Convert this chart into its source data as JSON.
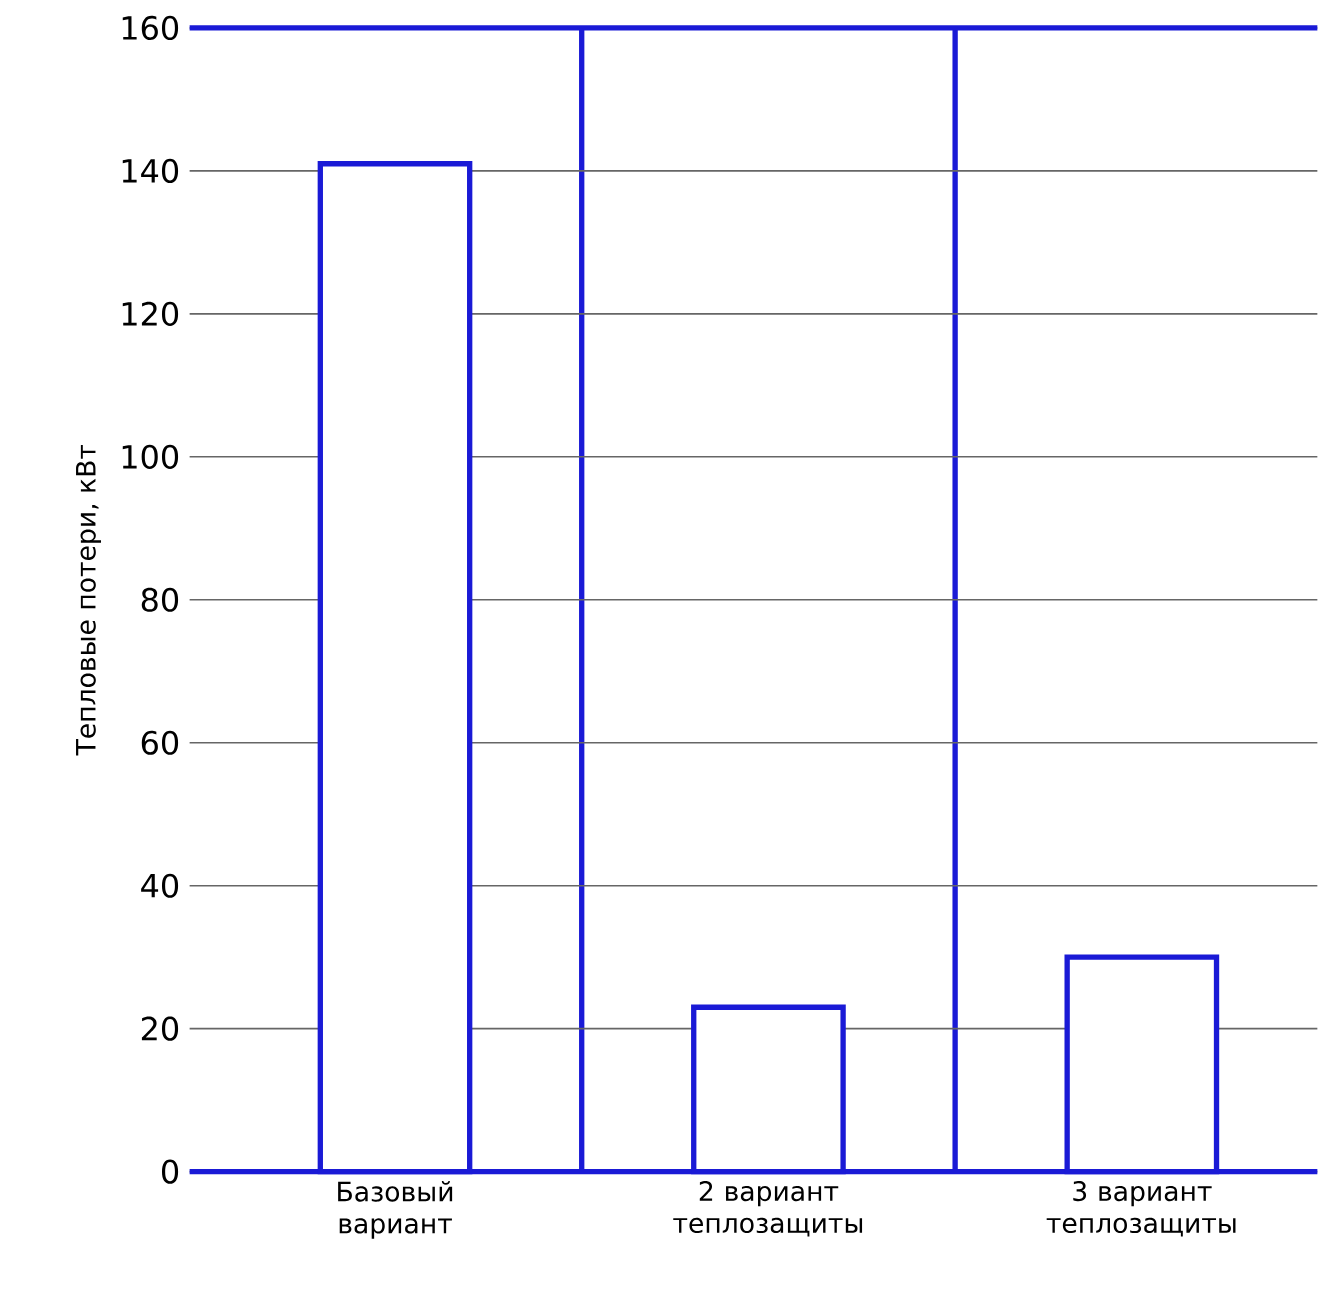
{
  "chart_data": {
    "type": "bar",
    "ylabel": "Тепловые потери, кВт",
    "categories": [
      "Базовый вариант",
      "2 вариант теплозащиты",
      "3 вариант теплозащиты"
    ],
    "values": [
      141,
      23,
      30
    ],
    "color": "#1a1ad6",
    "ylim": [
      0,
      160
    ],
    "yticks": [
      0,
      20,
      40,
      60,
      80,
      100,
      120,
      140,
      160
    ],
    "grid": "y"
  }
}
